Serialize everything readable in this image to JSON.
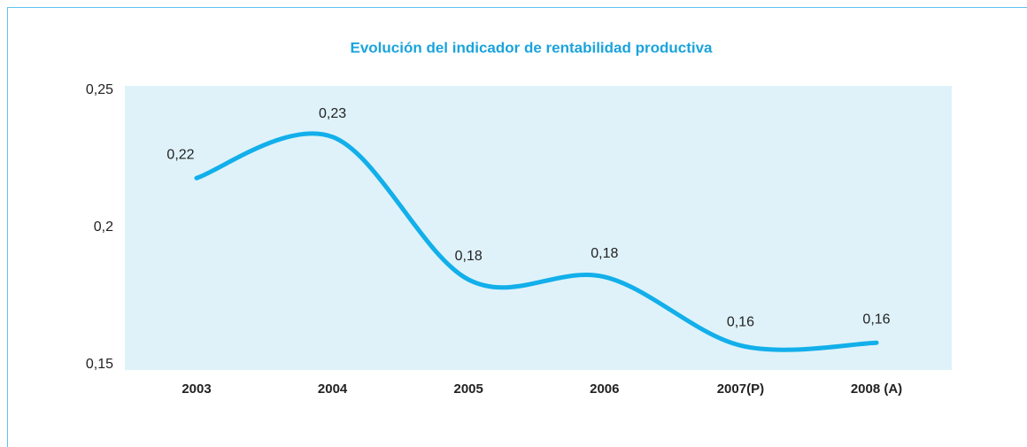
{
  "chart_data": {
    "type": "line",
    "title": "Evolución del indicador de rentabilidad productiva",
    "categories": [
      "2003",
      "2004",
      "2005",
      "2006",
      "2007(P)",
      "2008 (A)"
    ],
    "values": [
      0.218,
      0.233,
      0.181,
      0.182,
      0.157,
      0.158
    ],
    "value_labels": [
      "0,22",
      "0,23",
      "0,18",
      "0,18",
      "0,16",
      "0,16"
    ],
    "color": "#12afea",
    "ylim": [
      0.15,
      0.25
    ],
    "yticks": [
      {
        "value": 0.15,
        "label": "0,15"
      },
      {
        "value": 0.2,
        "label": "0,2"
      },
      {
        "value": 0.25,
        "label": "0,25"
      }
    ],
    "grid": false
  }
}
